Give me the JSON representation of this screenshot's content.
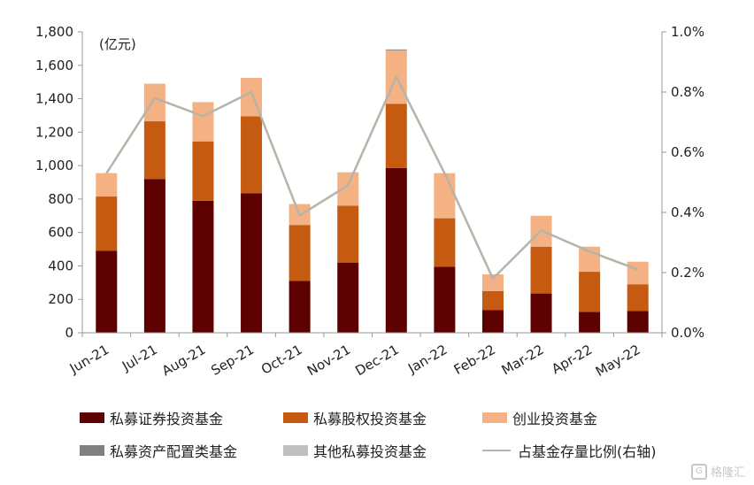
{
  "chart_data": {
    "type": "bar",
    "stacked": true,
    "unit_label": "(亿元)",
    "categories": [
      "Jun-21",
      "Jul-21",
      "Aug-21",
      "Sep-21",
      "Oct-21",
      "Nov-21",
      "Dec-21",
      "Jan-22",
      "Feb-22",
      "Mar-22",
      "Apr-22",
      "May-22"
    ],
    "y_left": {
      "min": 0,
      "max": 1800,
      "ticks": [
        "0",
        "200",
        "400",
        "600",
        "800",
        "1,000",
        "1,200",
        "1,400",
        "1,600",
        "1,800"
      ]
    },
    "y_right": {
      "min": 0,
      "max": 1.0,
      "ticks": [
        "0.0%",
        "0.2%",
        "0.4%",
        "0.6%",
        "0.8%",
        "1.0%"
      ]
    },
    "series": [
      {
        "name": "私募证券投资基金",
        "color": "#5c0000",
        "values": [
          490,
          920,
          790,
          835,
          310,
          420,
          985,
          395,
          135,
          235,
          125,
          130
        ]
      },
      {
        "name": "私募股权投资基金",
        "color": "#c55a11",
        "values": [
          325,
          345,
          355,
          460,
          335,
          340,
          385,
          290,
          115,
          280,
          240,
          160
        ]
      },
      {
        "name": "创业投资基金",
        "color": "#f4b183",
        "values": [
          140,
          225,
          235,
          230,
          125,
          200,
          320,
          270,
          100,
          185,
          150,
          135
        ]
      },
      {
        "name": "私募资产配置类基金",
        "color": "#808080",
        "values": [
          0,
          0,
          0,
          0,
          0,
          0,
          5,
          0,
          0,
          0,
          0,
          0
        ]
      },
      {
        "name": "其他私募投资基金",
        "color": "#c0c0c0",
        "values": [
          0,
          0,
          0,
          0,
          0,
          0,
          0,
          0,
          0,
          0,
          0,
          0
        ]
      }
    ],
    "line": {
      "name": "占基金存量比例(右轴)",
      "color": "#b4b4a8",
      "axis": "right",
      "values": [
        0.53,
        0.78,
        0.72,
        0.8,
        0.39,
        0.49,
        0.85,
        0.53,
        0.18,
        0.34,
        0.27,
        0.21
      ]
    },
    "grid": false,
    "legend_position": "bottom"
  },
  "watermark": {
    "icon": "G",
    "text": "格隆汇"
  }
}
